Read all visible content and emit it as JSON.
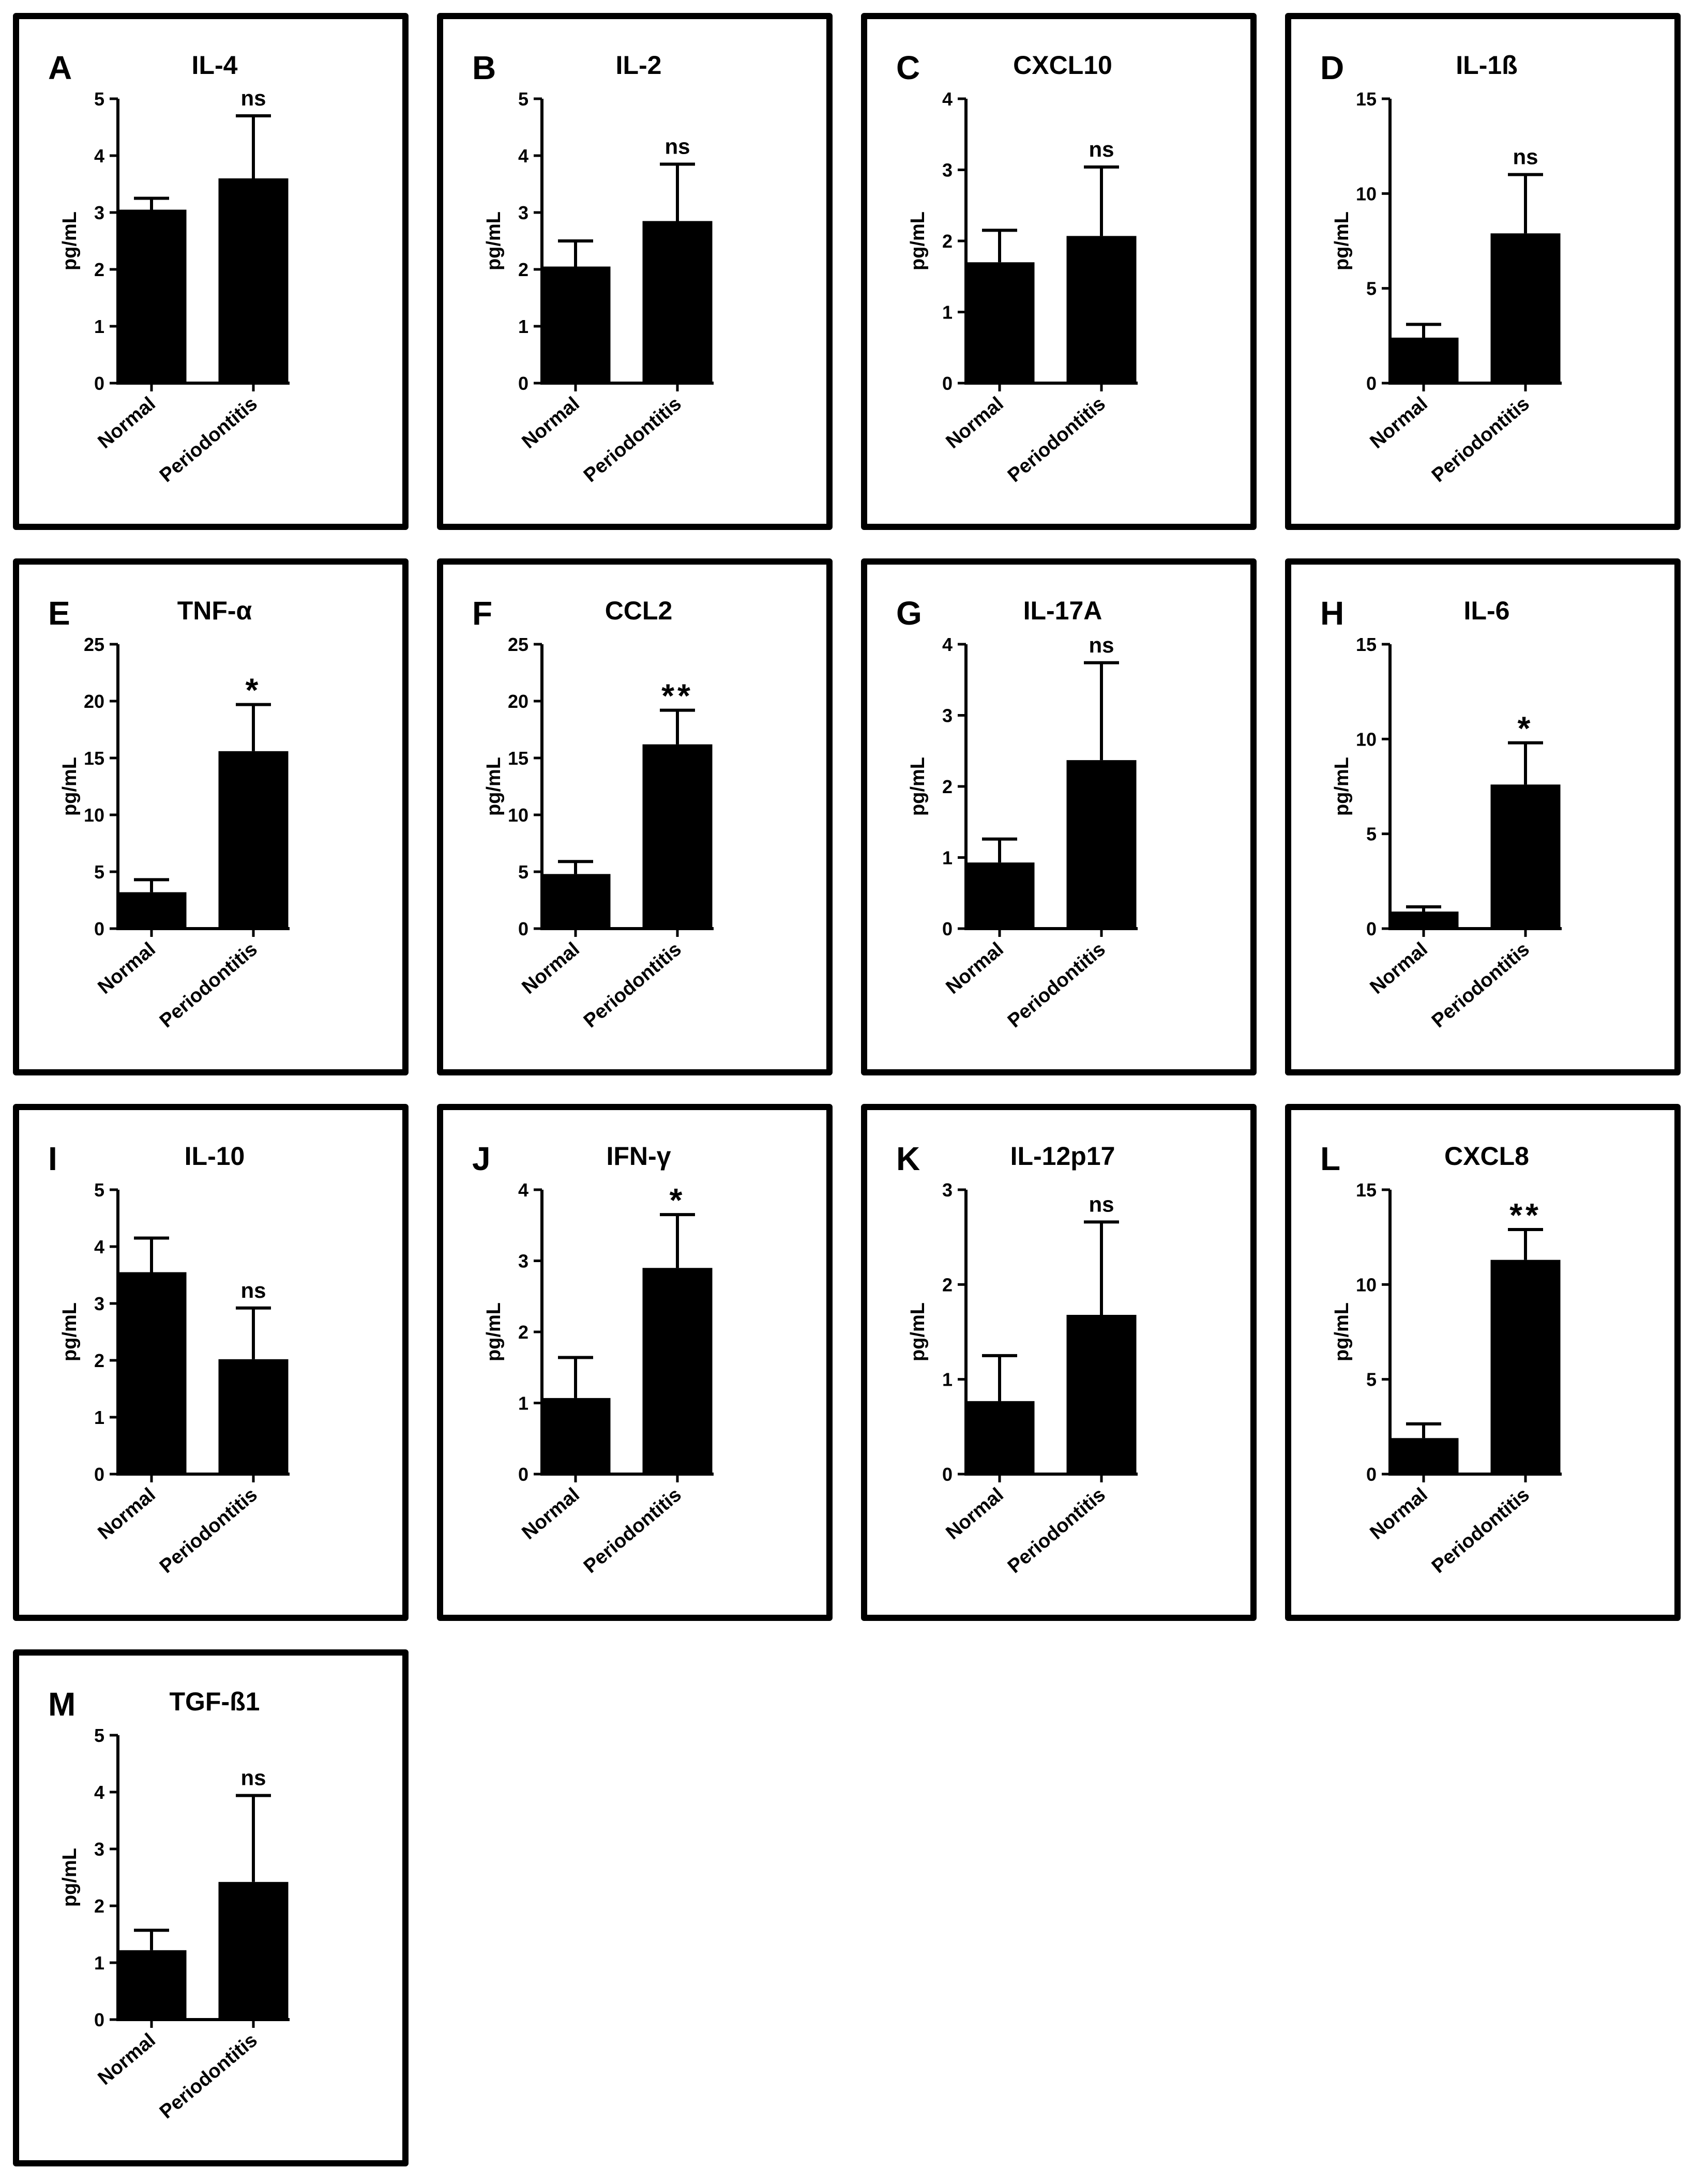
{
  "chart_data": [
    {
      "type": "bar",
      "label": "A",
      "title": "IL-4",
      "ylabel": "pg/mL",
      "categories": [
        "Normal",
        "Periodontitis"
      ],
      "values": [
        3.05,
        3.6
      ],
      "errors": [
        0.2,
        1.1
      ],
      "ylim": [
        0,
        5
      ],
      "yticks": [
        0,
        1,
        2,
        3,
        4,
        5
      ],
      "significance": "ns"
    },
    {
      "type": "bar",
      "label": "B",
      "title": "IL-2",
      "ylabel": "pg/mL",
      "categories": [
        "Normal",
        "Periodontitis"
      ],
      "values": [
        2.05,
        2.85
      ],
      "errors": [
        0.45,
        1.0
      ],
      "ylim": [
        0,
        5
      ],
      "yticks": [
        0,
        1,
        2,
        3,
        4,
        5
      ],
      "significance": "ns"
    },
    {
      "type": "bar",
      "label": "C",
      "title": "CXCL10",
      "ylabel": "pg/mL",
      "categories": [
        "Normal",
        "Periodontitis"
      ],
      "values": [
        1.7,
        2.07
      ],
      "errors": [
        0.45,
        0.97
      ],
      "ylim": [
        0,
        4
      ],
      "yticks": [
        0,
        1,
        2,
        3,
        4
      ],
      "significance": "ns"
    },
    {
      "type": "bar",
      "label": "D",
      "title": "IL-1ß",
      "ylabel": "pg/mL",
      "categories": [
        "Normal",
        "Periodontitis"
      ],
      "values": [
        2.4,
        7.9
      ],
      "errors": [
        0.7,
        3.1
      ],
      "ylim": [
        0,
        15
      ],
      "yticks": [
        0,
        5,
        10,
        15
      ],
      "significance": "ns"
    },
    {
      "type": "bar",
      "label": "E",
      "title": "TNF-α",
      "ylabel": "pg/mL",
      "categories": [
        "Normal",
        "Periodontitis"
      ],
      "values": [
        3.2,
        15.6
      ],
      "errors": [
        1.1,
        4.1
      ],
      "ylim": [
        0,
        25
      ],
      "yticks": [
        0,
        5,
        10,
        15,
        20,
        25
      ],
      "significance": "*"
    },
    {
      "type": "bar",
      "label": "F",
      "title": "CCL2",
      "ylabel": "pg/mL",
      "categories": [
        "Normal",
        "Periodontitis"
      ],
      "values": [
        4.8,
        16.2
      ],
      "errors": [
        1.1,
        3.0
      ],
      "ylim": [
        0,
        25
      ],
      "yticks": [
        0,
        5,
        10,
        15,
        20,
        25
      ],
      "significance": "**"
    },
    {
      "type": "bar",
      "label": "G",
      "title": "IL-17A",
      "ylabel": "pg/mL",
      "categories": [
        "Normal",
        "Periodontitis"
      ],
      "values": [
        0.93,
        2.37
      ],
      "errors": [
        0.33,
        1.37
      ],
      "ylim": [
        0,
        4
      ],
      "yticks": [
        0,
        1,
        2,
        3,
        4
      ],
      "significance": "ns"
    },
    {
      "type": "bar",
      "label": "H",
      "title": "IL-6",
      "ylabel": "pg/mL",
      "categories": [
        "Normal",
        "Periodontitis"
      ],
      "values": [
        0.9,
        7.6
      ],
      "errors": [
        0.25,
        2.2
      ],
      "ylim": [
        0,
        15
      ],
      "yticks": [
        0,
        5,
        10,
        15
      ],
      "significance": "*"
    },
    {
      "type": "bar",
      "label": "I",
      "title": "IL-10",
      "ylabel": "pg/mL",
      "categories": [
        "Normal",
        "Periodontitis"
      ],
      "values": [
        3.55,
        2.02
      ],
      "errors": [
        0.6,
        0.9
      ],
      "ylim": [
        0,
        5
      ],
      "yticks": [
        0,
        1,
        2,
        3,
        4,
        5
      ],
      "significance": "ns"
    },
    {
      "type": "bar",
      "label": "J",
      "title": "IFN-γ",
      "ylabel": "pg/mL",
      "categories": [
        "Normal",
        "Periodontitis"
      ],
      "values": [
        1.07,
        2.9
      ],
      "errors": [
        0.57,
        0.75
      ],
      "ylim": [
        0,
        4
      ],
      "yticks": [
        0,
        1,
        2,
        3,
        4
      ],
      "significance": "*"
    },
    {
      "type": "bar",
      "label": "K",
      "title": "IL-12p17",
      "ylabel": "pg/mL",
      "categories": [
        "Normal",
        "Periodontitis"
      ],
      "values": [
        0.77,
        1.68
      ],
      "errors": [
        0.48,
        0.98
      ],
      "ylim": [
        0,
        3
      ],
      "yticks": [
        0,
        1,
        2,
        3
      ],
      "significance": "ns"
    },
    {
      "type": "bar",
      "label": "L",
      "title": "CXCL8",
      "ylabel": "pg/mL",
      "categories": [
        "Normal",
        "Periodontitis"
      ],
      "values": [
        1.9,
        11.3
      ],
      "errors": [
        0.75,
        1.6
      ],
      "ylim": [
        0,
        15
      ],
      "yticks": [
        0,
        5,
        10,
        15
      ],
      "significance": "**"
    },
    {
      "type": "bar",
      "label": "M",
      "title": "TGF-ß1",
      "ylabel": "pg/mL",
      "categories": [
        "Normal",
        "Periodontitis"
      ],
      "values": [
        1.22,
        2.42
      ],
      "errors": [
        0.35,
        1.52
      ],
      "ylim": [
        0,
        5
      ],
      "yticks": [
        0,
        1,
        2,
        3,
        4,
        5
      ],
      "significance": "ns"
    }
  ]
}
